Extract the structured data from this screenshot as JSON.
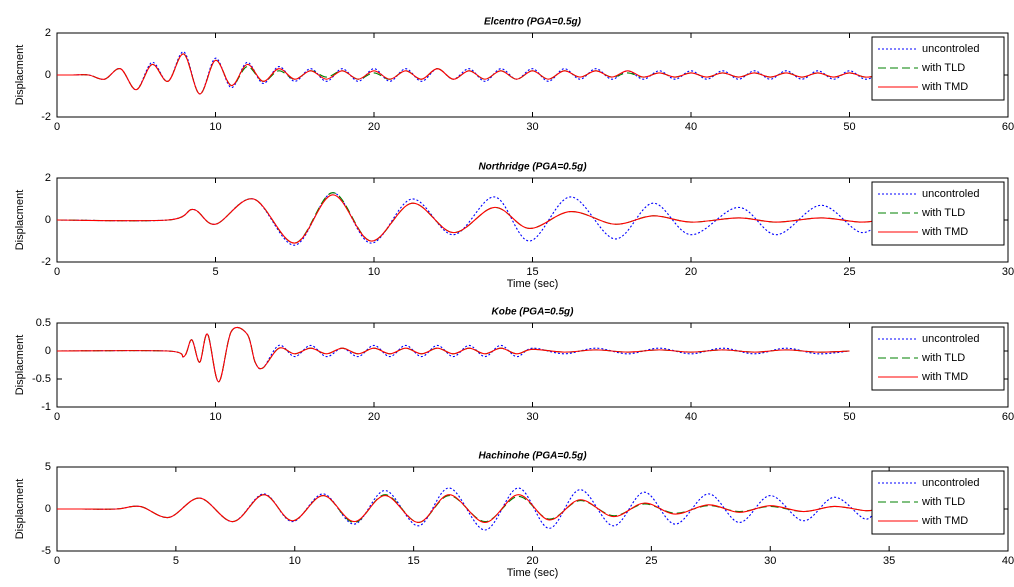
{
  "chart_data": [
    {
      "type": "line",
      "title": "Elcentro (PGA=0.5g)",
      "y_label": "Displacment",
      "legend": "upper right",
      "xlim": [
        0,
        60
      ],
      "xticks": [
        0,
        10,
        20,
        30,
        40,
        50,
        60
      ],
      "ylim": [
        -2,
        2
      ],
      "yticks": [
        -2,
        0,
        2
      ],
      "x": [
        0,
        1,
        2,
        3,
        4,
        5,
        6,
        7,
        8,
        9,
        10,
        11,
        12,
        13,
        14,
        15,
        16,
        17,
        18,
        19,
        20,
        21,
        22,
        23,
        24,
        25,
        26,
        27,
        28,
        29,
        30,
        31,
        32,
        33,
        34,
        35,
        36,
        37,
        38,
        39,
        40,
        41,
        42,
        43,
        44,
        45,
        46,
        47,
        48,
        49,
        50,
        51,
        52
      ],
      "series": [
        {
          "name": "uncontroled",
          "color": "#0000ff",
          "style": "dotted",
          "values": [
            0,
            0,
            0,
            -0.2,
            0.3,
            -0.7,
            0.6,
            -0.3,
            1.1,
            -0.9,
            0.8,
            -0.6,
            0.6,
            -0.4,
            0.4,
            -0.3,
            0.3,
            -0.3,
            0.3,
            -0.3,
            0.3,
            -0.3,
            0.3,
            -0.3,
            0.3,
            -0.2,
            0.3,
            -0.3,
            0.3,
            -0.2,
            0.3,
            -0.3,
            0.3,
            -0.2,
            0.3,
            -0.2,
            0.2,
            -0.2,
            0.2,
            -0.2,
            0.2,
            -0.2,
            0.2,
            -0.2,
            0.2,
            -0.2,
            0.2,
            -0.2,
            0.2,
            -0.2,
            0.2,
            -0.2,
            0.1
          ]
        },
        {
          "name": "with TLD",
          "color": "#008000",
          "style": "dashed",
          "values": [
            0,
            0,
            0,
            -0.2,
            0.3,
            -0.7,
            0.5,
            -0.3,
            1.0,
            -0.9,
            0.7,
            -0.5,
            0.4,
            -0.3,
            0.2,
            -0.2,
            0.2,
            -0.1,
            0.2,
            -0.2,
            0.1,
            -0.2,
            0.2,
            -0.2,
            0.3,
            -0.2,
            0.2,
            -0.2,
            0.2,
            -0.2,
            0.2,
            -0.2,
            0.2,
            -0.1,
            0.2,
            -0.1,
            0.1,
            -0.1,
            0.1,
            -0.1,
            0.1,
            -0.1,
            0.1,
            -0.1,
            0.1,
            -0.1,
            0.1,
            -0.1,
            0.1,
            -0.1,
            0.1,
            -0.1,
            0
          ]
        },
        {
          "name": "with TMD",
          "color": "#ff0000",
          "style": "solid",
          "values": [
            0,
            0,
            0,
            -0.2,
            0.3,
            -0.7,
            0.5,
            -0.3,
            1.0,
            -0.9,
            0.7,
            -0.5,
            0.5,
            -0.3,
            0.3,
            -0.2,
            0.2,
            -0.2,
            0.2,
            -0.2,
            0.2,
            -0.2,
            0.2,
            -0.2,
            0.3,
            -0.2,
            0.2,
            -0.2,
            0.2,
            -0.2,
            0.2,
            -0.2,
            0.2,
            -0.1,
            0.2,
            -0.1,
            0.2,
            -0.1,
            0.1,
            -0.1,
            0.1,
            -0.1,
            0.1,
            -0.1,
            0.1,
            -0.1,
            0.1,
            -0.1,
            0.1,
            -0.1,
            0.1,
            -0.1,
            0
          ]
        }
      ]
    },
    {
      "type": "line",
      "title": "Northridge (PGA=0.5g)",
      "y_label": "Displacment",
      "x_label": "Time (sec)",
      "legend": "upper right",
      "xlim": [
        0,
        30
      ],
      "xticks": [
        0,
        5,
        10,
        15,
        20,
        25,
        30
      ],
      "ylim": [
        -2,
        2
      ],
      "yticks": [
        -2,
        0,
        2
      ],
      "x": [
        0,
        3.5,
        4.3,
        5.0,
        6.2,
        7.5,
        8.7,
        9.9,
        11.2,
        12.5,
        13.8,
        14.9,
        16.2,
        17.6,
        18.8,
        20,
        21.5,
        22.7,
        24.1,
        25.4,
        26.3
      ],
      "series": [
        {
          "name": "uncontroled",
          "color": "#0000ff",
          "style": "dotted",
          "values": [
            0,
            0,
            0.5,
            -0.2,
            1.0,
            -1.2,
            1.3,
            -1.1,
            1.0,
            -0.7,
            1.1,
            -1.0,
            1.1,
            -0.9,
            0.8,
            -0.7,
            0.6,
            -0.7,
            0.7,
            -0.6,
            0.5
          ]
        },
        {
          "name": "with TLD",
          "color": "#008000",
          "style": "dashed",
          "values": [
            0,
            0,
            0.5,
            -0.2,
            1.0,
            -1.1,
            1.3,
            -1.0,
            0.8,
            -0.6,
            0.6,
            -0.4,
            0.4,
            -0.2,
            0.2,
            -0.1,
            0.1,
            -0.1,
            0.1,
            -0.1,
            0.1
          ]
        },
        {
          "name": "with TMD",
          "color": "#ff0000",
          "style": "solid",
          "values": [
            0,
            0,
            0.5,
            -0.2,
            1.0,
            -1.1,
            1.2,
            -1.0,
            0.8,
            -0.6,
            0.6,
            -0.4,
            0.4,
            -0.2,
            0.2,
            -0.1,
            0.1,
            -0.1,
            0.1,
            -0.1,
            0.1
          ]
        }
      ]
    },
    {
      "type": "line",
      "title": "Kobe (PGA=0.5g)",
      "y_label": "Displacment",
      "legend": "upper right",
      "xlim": [
        0,
        60
      ],
      "xticks": [
        0,
        10,
        20,
        30,
        40,
        50,
        60
      ],
      "ylim": [
        -1,
        0.5
      ],
      "yticks": [
        -1,
        -0.5,
        0,
        0.5
      ],
      "x": [
        0,
        7,
        8,
        8.5,
        9,
        9.5,
        10.2,
        11,
        12,
        12.5,
        13,
        14,
        15,
        16,
        17,
        18,
        19,
        20,
        21,
        22,
        23,
        24,
        25,
        26,
        27,
        28,
        29,
        30,
        32,
        34,
        36,
        38,
        40,
        42,
        44,
        46,
        48,
        50
      ],
      "series": [
        {
          "name": "uncontroled",
          "color": "#0000ff",
          "style": "dotted",
          "values": [
            0,
            0,
            -0.1,
            0.2,
            -0.2,
            0.3,
            -0.55,
            0.35,
            0.3,
            -0.2,
            -0.3,
            0.1,
            -0.1,
            0.1,
            -0.1,
            0.05,
            -0.1,
            0.1,
            -0.1,
            0.1,
            -0.1,
            0.1,
            -0.1,
            0.1,
            -0.1,
            0.1,
            -0.1,
            0.05,
            -0.05,
            0.05,
            -0.05,
            0.05,
            -0.05,
            0.05,
            -0.05,
            0.05,
            -0.05,
            0
          ]
        },
        {
          "name": "with TLD",
          "color": "#008000",
          "style": "dashed",
          "values": [
            0,
            0,
            -0.1,
            0.2,
            -0.2,
            0.3,
            -0.55,
            0.35,
            0.3,
            -0.2,
            -0.3,
            0.05,
            -0.05,
            0.05,
            -0.05,
            0.05,
            -0.05,
            0.05,
            -0.05,
            0.05,
            -0.05,
            0.05,
            -0.05,
            0.05,
            -0.05,
            0.05,
            -0.05,
            0.03,
            -0.02,
            0.02,
            -0.02,
            0.02,
            -0.02,
            0.02,
            -0.02,
            0.02,
            -0.02,
            0
          ]
        },
        {
          "name": "with TMD",
          "color": "#ff0000",
          "style": "solid",
          "values": [
            0,
            0,
            -0.1,
            0.2,
            -0.2,
            0.3,
            -0.55,
            0.35,
            0.3,
            -0.2,
            -0.3,
            0.05,
            -0.05,
            0.05,
            -0.05,
            0.05,
            -0.05,
            0.05,
            -0.05,
            0.05,
            -0.05,
            0.05,
            -0.05,
            0.05,
            -0.05,
            0.05,
            -0.05,
            0.03,
            -0.02,
            0.02,
            -0.02,
            0.02,
            -0.02,
            0.02,
            -0.02,
            0.02,
            -0.02,
            0
          ]
        }
      ]
    },
    {
      "type": "line",
      "title": "Hachinohe (PGA=0.5g)",
      "y_label": "Displacment",
      "x_label": "Time (sec)",
      "legend": "upper right",
      "xlim": [
        0,
        40
      ],
      "xticks": [
        0,
        5,
        10,
        15,
        20,
        25,
        30,
        35,
        40
      ],
      "ylim": [
        -5,
        5
      ],
      "yticks": [
        -5,
        0,
        5
      ],
      "x": [
        0,
        1,
        2.5,
        3.5,
        4.7,
        6.0,
        7.4,
        8.7,
        9.9,
        11.2,
        12.5,
        13.8,
        15.2,
        16.5,
        18,
        19.4,
        20.7,
        22,
        23.4,
        24.7,
        26,
        27.4,
        28.7,
        30,
        31.4,
        32.7,
        34,
        34.5
      ],
      "series": [
        {
          "name": "uncontroled",
          "color": "#0000ff",
          "style": "dotted",
          "values": [
            0,
            0,
            0,
            0.3,
            -1.0,
            1.3,
            -1.5,
            1.8,
            -1.5,
            1.8,
            -1.8,
            2.2,
            -2.0,
            2.5,
            -2.5,
            2.5,
            -2.3,
            2.3,
            -2.0,
            2.0,
            -1.8,
            1.8,
            -1.6,
            1.6,
            -1.4,
            1.4,
            -1.2,
            0.5
          ]
        },
        {
          "name": "with TLD",
          "color": "#008000",
          "style": "dashed",
          "values": [
            0,
            0,
            0,
            0.3,
            -1.0,
            1.3,
            -1.5,
            1.7,
            -1.4,
            1.6,
            -1.6,
            1.7,
            -1.6,
            1.6,
            -1.5,
            1.5,
            -1.2,
            1.0,
            -0.8,
            0.6,
            -0.5,
            0.4,
            -0.3,
            0.3,
            -0.3,
            0.3,
            -0.2,
            0
          ]
        },
        {
          "name": "with TMD",
          "color": "#ff0000",
          "style": "solid",
          "values": [
            0,
            0,
            0,
            0.3,
            -1.0,
            1.3,
            -1.5,
            1.7,
            -1.4,
            1.6,
            -1.5,
            1.6,
            -1.6,
            1.7,
            -1.6,
            1.7,
            -1.3,
            1.1,
            -0.9,
            0.7,
            -0.6,
            0.5,
            -0.4,
            0.4,
            -0.3,
            0.3,
            -0.2,
            0
          ]
        }
      ]
    }
  ]
}
